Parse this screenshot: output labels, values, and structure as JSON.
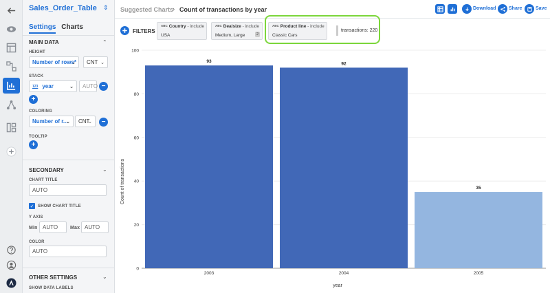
{
  "panel": {
    "table_name": "Sales_Order_Table",
    "tabs": [
      "Settings",
      "Charts"
    ],
    "main_data": {
      "title": "MAIN DATA",
      "height_label": "HEIGHT",
      "height_value": "Number of rows*",
      "height_agg": "CNT",
      "stack_label": "STACK",
      "stack_type": "123",
      "stack_value": "year",
      "stack_auto": "AUTO",
      "coloring_label": "COLORING",
      "coloring_value": "Number of r...",
      "coloring_agg": "CNT",
      "tooltip_label": "TOOLTIP"
    },
    "secondary": {
      "title": "SECONDARY",
      "chart_title_label": "CHART TITLE",
      "chart_title_value": "AUTO",
      "show_chart_title": "SHOW CHART TITLE",
      "y_axis_label": "Y AXIS",
      "min_label": "Min",
      "min_value": "AUTO",
      "max_label": "Max",
      "max_value": "AUTO",
      "color_label": "COLOR",
      "color_value": "AUTO"
    },
    "other": {
      "title": "OTHER SETTINGS",
      "show_data_labels": "SHOW DATA LABELS"
    }
  },
  "topbar": {
    "crumb1": "Suggested Charts",
    "crumb_sep": "›",
    "crumb2": "Count of transactions by year",
    "download": "Download",
    "share": "Share",
    "save": "Save"
  },
  "filters": {
    "label": "FILTERS",
    "chips": [
      {
        "type": "ABC",
        "field": "Country",
        "mode": "- include",
        "value": "USA",
        "count": ""
      },
      {
        "type": "ABC",
        "field": "Dealsize",
        "mode": "- include",
        "value": "Medium, Large",
        "count": "2"
      },
      {
        "type": "ABC",
        "field": "Product line",
        "mode": "- include",
        "value": "Classic Cars",
        "count": ""
      }
    ],
    "transactions": "transactions: 220"
  },
  "colors": {
    "accent": "#1f6fd6",
    "bar_dark": "#4168b7",
    "bar_light": "#94b6e0",
    "highlight": "#7bd63a"
  },
  "chart_data": {
    "type": "bar",
    "categories": [
      "2003",
      "2004",
      "2005"
    ],
    "values": [
      93,
      92,
      35
    ],
    "xlabel": "year",
    "ylabel": "Count of transactions",
    "ylim": [
      0,
      100
    ],
    "yticks": [
      0,
      20,
      40,
      60,
      80,
      100
    ],
    "grid": true
  }
}
